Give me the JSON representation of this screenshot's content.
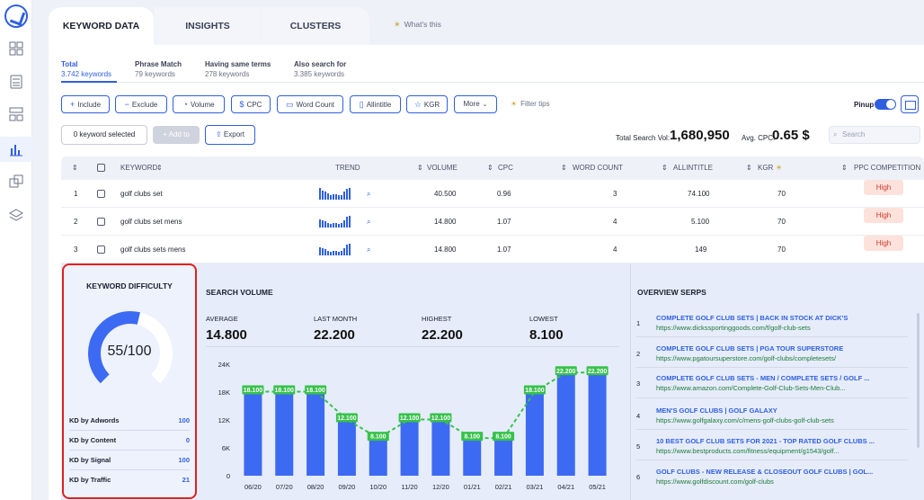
{
  "tabs": {
    "keyword_data": "KEYWORD DATA",
    "insights": "INSIGHTS",
    "clusters": "CLUSTERS",
    "whats_this": "What's this"
  },
  "subtabs": [
    {
      "title": "Total",
      "count": "3.742 keywords"
    },
    {
      "title": "Phrase Match",
      "count": "79 keywords"
    },
    {
      "title": "Having same terms",
      "count": "278 keywords"
    },
    {
      "title": "Also search for",
      "count": "3.385 keywords"
    }
  ],
  "filters": {
    "include": "Include",
    "exclude": "Exclude",
    "volume": "Volume",
    "cpc": "CPC",
    "word_count": "Word Count",
    "allintitle": "Allintitle",
    "kgr": "KGR",
    "more": "More",
    "filter_tips": "Filter tips",
    "pinup": "Pinup"
  },
  "actions": {
    "selected": "0 keyword selected",
    "add_to": "Add to",
    "export": "Export",
    "total_label": "Total Search Vol:",
    "total_value": "1,680,950",
    "cpc_label": "Avg. CPC:",
    "cpc_value": "0.65 $",
    "search_placeholder": "Search"
  },
  "table": {
    "headers": {
      "keyword": "KEYWORD",
      "trend": "TREND",
      "volume": "VOLUME",
      "cpc": "CPC",
      "word_count": "WORD COUNT",
      "allintitle": "ALLINTITLE",
      "kgr": "KGR",
      "ppc": "PPC COMPETITION"
    },
    "rows": [
      {
        "n": "1",
        "keyword": "golf clubs set",
        "volume": "40.500",
        "cpc": "0.96",
        "word_count": "3",
        "allintitle": "74.100",
        "kgr": "70",
        "ppc": "High"
      },
      {
        "n": "2",
        "keyword": "golf clubs set mens",
        "volume": "14.800",
        "cpc": "1.07",
        "word_count": "4",
        "allintitle": "5.100",
        "kgr": "70",
        "ppc": "High"
      },
      {
        "n": "3",
        "keyword": "golf clubs sets mens",
        "volume": "14.800",
        "cpc": "1.07",
        "word_count": "4",
        "allintitle": "149",
        "kgr": "70",
        "ppc": "High"
      }
    ]
  },
  "kd": {
    "title": "KEYWORD DIFFICULTY",
    "value": "55/100",
    "score": 55,
    "rows": [
      {
        "label": "KD by Adwords",
        "value": "100"
      },
      {
        "label": "KD by Content",
        "value": "0"
      },
      {
        "label": "KD by Signal",
        "value": "100"
      },
      {
        "label": "KD by Traffic",
        "value": "21"
      }
    ]
  },
  "search_volume": {
    "title": "SEARCH VOLUME",
    "stats": [
      {
        "label": "AVERAGE",
        "value": "14.800"
      },
      {
        "label": "LAST MONTH",
        "value": "22.200"
      },
      {
        "label": "HIGHEST",
        "value": "22.200"
      },
      {
        "label": "LOWEST",
        "value": "8.100"
      }
    ]
  },
  "chart_data": {
    "type": "bar",
    "categories": [
      "06/20",
      "07/20",
      "08/20",
      "09/20",
      "10/20",
      "11/20",
      "12/20",
      "01/21",
      "02/21",
      "03/21",
      "04/21",
      "05/21"
    ],
    "values": [
      18100,
      18100,
      18100,
      12100,
      8100,
      12100,
      12100,
      8100,
      8100,
      18100,
      22200,
      22200
    ],
    "labels": [
      "18.100",
      "18.100",
      "18.100",
      "12.100",
      "8.100",
      "12.100",
      "12.100",
      "8.100",
      "8.100",
      "18.100",
      "22.200",
      "22.200"
    ],
    "yticks": [
      "0",
      "6K",
      "12K",
      "18K",
      "24K"
    ],
    "ylim": [
      0,
      24000
    ],
    "bar_color": "#3d6af2",
    "line_color": "#36c24a"
  },
  "serps": {
    "title": "OVERVIEW SERPS",
    "items": [
      {
        "n": "1",
        "title": "COMPLETE GOLF CLUB SETS | BACK IN STOCK AT DICK'S",
        "url": "https://www.dickssportinggoods.com/f/golf-club-sets"
      },
      {
        "n": "2",
        "title": "COMPLETE GOLF CLUB SETS | PGA TOUR SUPERSTORE",
        "url": "https://www.pgatoursuperstore.com/golf-clubs/completesets/"
      },
      {
        "n": "3",
        "title": "COMPLETE GOLF CLUB SETS - MEN / COMPLETE SETS / GOLF ...",
        "url": "https://www.amazon.com/Complete-Golf-Club-Sets-Men-Club..."
      },
      {
        "n": "4",
        "title": "MEN'S GOLF CLUBS | GOLF GALAXY",
        "url": "https://www.golfgalaxy.com/c/mens-golf-clubs-golf-club-sets"
      },
      {
        "n": "5",
        "title": "10 BEST GOLF CLUB SETS FOR 2021 - TOP RATED GOLF CLUBS ...",
        "url": "https://www.bestproducts.com/fitness/equipment/g1543/golf..."
      },
      {
        "n": "6",
        "title": "GOLF CLUBS - NEW RELEASE & CLOSEOUT GOLF CLUBS | GOL...",
        "url": "https://www.golfdiscount.com/golf-clubs"
      }
    ]
  }
}
